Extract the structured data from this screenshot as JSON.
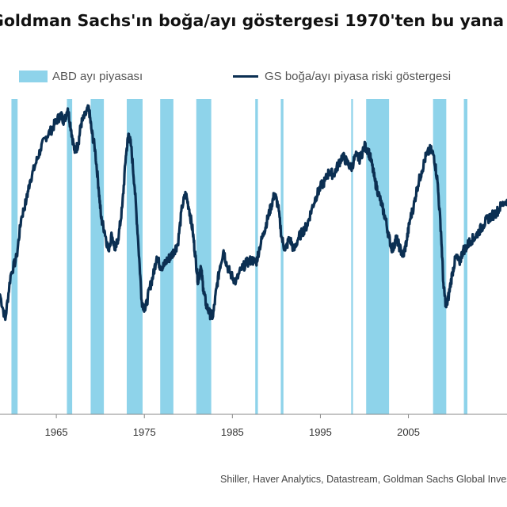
{
  "title": "Goldman Sachs'ın boğa/ayı göstergesi 1970'ten bu yana en yüksek seviyesinde",
  "source": "Shiller, Haver Analytics, Datastream, Goldman Sachs Global Investment Research",
  "colors": {
    "recession": "#8ed3ea",
    "line": "#0b2f52",
    "axis": "#888888"
  },
  "chart_data": {
    "type": "line",
    "title": "Goldman Sachs'ın boğa/ayı göstergesi 1970'ten bu yana en yüksek seviyesinde",
    "xlim": [
      1958.6,
      2016.2
    ],
    "ylim": [
      0,
      100
    ],
    "x_ticks": [
      1965,
      1975,
      1985,
      1995,
      2005
    ],
    "legend": [
      {
        "label": "ABD ayı piyasası",
        "kind": "band"
      },
      {
        "label": "GS boğa/ayı piyasa riski göstergesi",
        "kind": "line"
      }
    ],
    "legend_position": "top",
    "bear_markets": [
      [
        1959.9,
        1960.6
      ],
      [
        1966.2,
        1966.8
      ],
      [
        1968.9,
        1970.4
      ],
      [
        1973.0,
        1974.8
      ],
      [
        1976.8,
        1978.3
      ],
      [
        1980.9,
        1982.6
      ],
      [
        1987.6,
        1987.9
      ],
      [
        1990.5,
        1990.8
      ],
      [
        1998.5,
        1998.7
      ],
      [
        2000.2,
        2002.8
      ],
      [
        2007.8,
        2009.3
      ],
      [
        2011.3,
        2011.7
      ]
    ],
    "series": [
      {
        "values": [
          [
            1958.6,
            38
          ],
          [
            1959.2,
            30
          ],
          [
            1959.8,
            44
          ],
          [
            1960.5,
            50
          ],
          [
            1961.0,
            62
          ],
          [
            1961.6,
            68
          ],
          [
            1962.0,
            74
          ],
          [
            1962.6,
            79
          ],
          [
            1963.2,
            84
          ],
          [
            1963.8,
            88
          ],
          [
            1964.4,
            90
          ],
          [
            1965.0,
            93
          ],
          [
            1965.5,
            95
          ],
          [
            1965.9,
            93
          ],
          [
            1966.3,
            97
          ],
          [
            1966.7,
            90
          ],
          [
            1967.1,
            83
          ],
          [
            1967.5,
            86
          ],
          [
            1967.8,
            92
          ],
          [
            1968.3,
            95
          ],
          [
            1968.7,
            97
          ],
          [
            1969.0,
            90
          ],
          [
            1969.4,
            84
          ],
          [
            1969.8,
            72
          ],
          [
            1970.1,
            62
          ],
          [
            1970.5,
            58
          ],
          [
            1970.9,
            52
          ],
          [
            1971.3,
            57
          ],
          [
            1971.7,
            52
          ],
          [
            1972.1,
            57
          ],
          [
            1972.5,
            66
          ],
          [
            1972.9,
            82
          ],
          [
            1973.2,
            89
          ],
          [
            1973.5,
            85
          ],
          [
            1973.9,
            72
          ],
          [
            1974.3,
            55
          ],
          [
            1974.7,
            36
          ],
          [
            1975.1,
            33
          ],
          [
            1975.6,
            40
          ],
          [
            1976.0,
            44
          ],
          [
            1976.4,
            50
          ],
          [
            1976.8,
            47
          ],
          [
            1977.2,
            47
          ],
          [
            1977.6,
            49
          ],
          [
            1978.0,
            50
          ],
          [
            1978.4,
            52
          ],
          [
            1978.8,
            54
          ],
          [
            1979.3,
            66
          ],
          [
            1979.7,
            70
          ],
          [
            1980.1,
            65
          ],
          [
            1980.5,
            58
          ],
          [
            1980.8,
            50
          ],
          [
            1981.1,
            42
          ],
          [
            1981.4,
            47
          ],
          [
            1981.7,
            40
          ],
          [
            1982.0,
            35
          ],
          [
            1982.4,
            32
          ],
          [
            1982.8,
            31
          ],
          [
            1983.2,
            40
          ],
          [
            1983.6,
            47
          ],
          [
            1984.0,
            52
          ],
          [
            1984.4,
            47
          ],
          [
            1984.9,
            44
          ],
          [
            1985.4,
            42
          ],
          [
            1986.0,
            46
          ],
          [
            1986.6,
            48
          ],
          [
            1987.2,
            49
          ],
          [
            1987.7,
            48
          ],
          [
            1988.1,
            53
          ],
          [
            1988.6,
            58
          ],
          [
            1989.0,
            62
          ],
          [
            1989.4,
            66
          ],
          [
            1989.8,
            70
          ],
          [
            1990.2,
            66
          ],
          [
            1990.6,
            56
          ],
          [
            1991.0,
            52
          ],
          [
            1991.5,
            56
          ],
          [
            1992.0,
            52
          ],
          [
            1992.5,
            56
          ],
          [
            1993.0,
            58
          ],
          [
            1993.5,
            60
          ],
          [
            1994.0,
            65
          ],
          [
            1994.5,
            69
          ],
          [
            1995.0,
            72
          ],
          [
            1995.5,
            74
          ],
          [
            1996.0,
            77
          ],
          [
            1996.5,
            76
          ],
          [
            1997.0,
            79
          ],
          [
            1997.5,
            82
          ],
          [
            1998.0,
            80
          ],
          [
            1998.5,
            78
          ],
          [
            1999.0,
            82
          ],
          [
            1999.5,
            81
          ],
          [
            2000.0,
            85
          ],
          [
            2000.4,
            84
          ],
          [
            2000.8,
            80
          ],
          [
            2001.2,
            74
          ],
          [
            2001.6,
            70
          ],
          [
            2002.0,
            66
          ],
          [
            2002.4,
            62
          ],
          [
            2002.8,
            56
          ],
          [
            2003.2,
            52
          ],
          [
            2003.6,
            56
          ],
          [
            2004.0,
            53
          ],
          [
            2004.4,
            50
          ],
          [
            2004.8,
            55
          ],
          [
            2005.2,
            62
          ],
          [
            2005.6,
            66
          ],
          [
            2006.0,
            72
          ],
          [
            2006.5,
            77
          ],
          [
            2007.0,
            82
          ],
          [
            2007.5,
            84
          ],
          [
            2007.9,
            82
          ],
          [
            2008.3,
            74
          ],
          [
            2008.7,
            58
          ],
          [
            2009.0,
            40
          ],
          [
            2009.3,
            34
          ],
          [
            2009.6,
            38
          ],
          [
            2010.0,
            45
          ],
          [
            2010.4,
            50
          ],
          [
            2010.8,
            48
          ],
          [
            2011.2,
            52
          ],
          [
            2011.6,
            53
          ],
          [
            2012.0,
            55
          ],
          [
            2012.5,
            56
          ],
          [
            2013.0,
            58
          ],
          [
            2013.5,
            60
          ],
          [
            2014.0,
            62
          ],
          [
            2014.5,
            63
          ],
          [
            2015.0,
            64
          ],
          [
            2015.5,
            66
          ],
          [
            2016.2,
            68
          ]
        ]
      }
    ]
  }
}
